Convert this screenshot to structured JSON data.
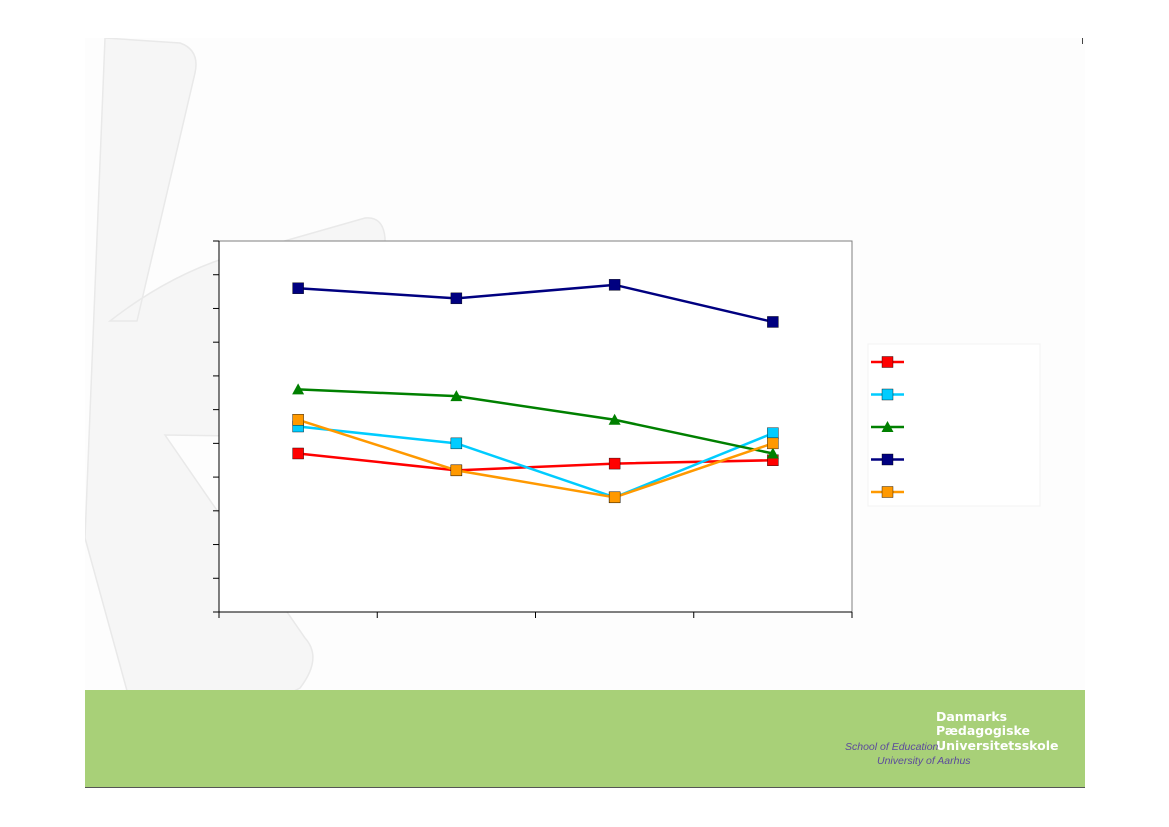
{
  "chart_data": {
    "type": "line",
    "categories": [
      "",
      "",
      "",
      ""
    ],
    "ylim": [
      0,
      11
    ],
    "grid": false,
    "legend": "right",
    "series": [
      {
        "color": "#ff0000",
        "marker": "square",
        "values": [
          4.7,
          4.2,
          4.4,
          4.5
        ]
      },
      {
        "color": "#00ccff",
        "marker": "square",
        "values": [
          5.5,
          5.0,
          3.4,
          5.3
        ]
      },
      {
        "color": "#008000",
        "marker": "triangle",
        "values": [
          6.6,
          6.4,
          5.7,
          4.7
        ]
      },
      {
        "color": "#000080",
        "marker": "square",
        "values": [
          9.6,
          9.3,
          9.7,
          8.6
        ]
      },
      {
        "color": "#ff9900",
        "marker": "square",
        "values": [
          5.7,
          4.2,
          3.4,
          5.0
        ]
      }
    ]
  },
  "logo": {
    "line1": "Danmarks",
    "line2": "Pædagogiske",
    "line3": "Universitetsskole",
    "school": "School of Education",
    "university": "University of Aarhus"
  },
  "colors": {
    "footer_band": "#a8d078",
    "logo_italic": "#5b4a9c"
  }
}
